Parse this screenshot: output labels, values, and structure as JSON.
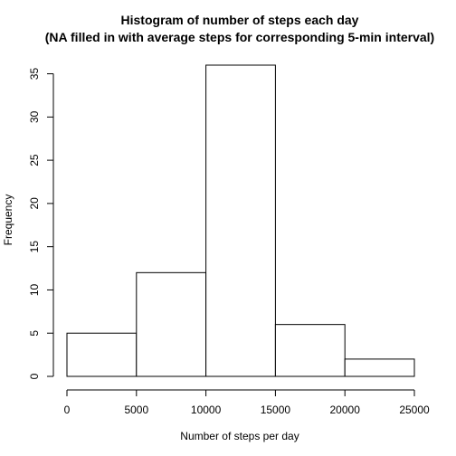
{
  "chart_data": {
    "type": "bar",
    "title": "Histogram of number of steps each day",
    "subtitle": "(NA filled in with average steps for corresponding 5-min interval)",
    "xlabel": "Number of steps per day",
    "ylabel": "Frequency",
    "bins": [
      {
        "from": 0,
        "to": 5000,
        "count": 5
      },
      {
        "from": 5000,
        "to": 10000,
        "count": 12
      },
      {
        "from": 10000,
        "to": 15000,
        "count": 36
      },
      {
        "from": 15000,
        "to": 20000,
        "count": 6
      },
      {
        "from": 20000,
        "to": 25000,
        "count": 2
      }
    ],
    "xlim": [
      0,
      25000
    ],
    "ylim": [
      0,
      36
    ],
    "x_ticks": [
      0,
      5000,
      10000,
      15000,
      20000,
      25000
    ],
    "x_tick_labels": [
      "0",
      "5000",
      "10000",
      "15000",
      "20000",
      "25000"
    ],
    "y_ticks": [
      0,
      5,
      10,
      15,
      20,
      25,
      30,
      35
    ],
    "y_tick_labels": [
      "0",
      "5",
      "10",
      "15",
      "20",
      "25",
      "30",
      "35"
    ],
    "grid": false,
    "bar_fill": "#ffffff",
    "bar_stroke": "#000000"
  }
}
